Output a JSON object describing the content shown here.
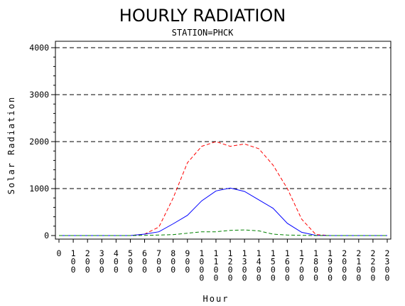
{
  "chart_data": {
    "type": "line",
    "title": "HOURLY RADIATION",
    "subtitle": "STATION=PHCK",
    "xlabel": "Hour",
    "ylabel": "Solar Radiation",
    "xlim": [
      0,
      2300
    ],
    "ylim": [
      0,
      4000
    ],
    "x_ticks": [
      "0",
      "100",
      "200",
      "300",
      "400",
      "500",
      "600",
      "700",
      "800",
      "900",
      "1000",
      "1100",
      "1200",
      "1300",
      "1400",
      "1500",
      "1600",
      "1700",
      "1800",
      "1900",
      "2000",
      "2100",
      "2200",
      "2300"
    ],
    "y_ticks": [
      0,
      1000,
      2000,
      3000,
      4000
    ],
    "grid": "horizontal dashed at major y ticks",
    "x": [
      0,
      100,
      200,
      300,
      400,
      500,
      600,
      700,
      800,
      900,
      1000,
      1100,
      1200,
      1300,
      1400,
      1500,
      1600,
      1700,
      1800,
      1900,
      2000,
      2100,
      2200,
      2300
    ],
    "series": [
      {
        "color": "#ff0000",
        "style": "dashed",
        "values": [
          0,
          0,
          0,
          0,
          0,
          0,
          30,
          180,
          800,
          1550,
          1900,
          2000,
          1900,
          1950,
          1850,
          1500,
          1000,
          350,
          20,
          0,
          0,
          0,
          0,
          0
        ]
      },
      {
        "color": "#0000ff",
        "style": "solid",
        "values": [
          0,
          0,
          0,
          0,
          0,
          0,
          30,
          80,
          250,
          430,
          740,
          950,
          1010,
          940,
          760,
          580,
          260,
          70,
          5,
          0,
          0,
          0,
          0,
          0
        ]
      },
      {
        "color": "#008000",
        "style": "dashed",
        "values": [
          0,
          0,
          0,
          0,
          0,
          0,
          5,
          10,
          20,
          50,
          80,
          80,
          110,
          120,
          100,
          30,
          10,
          5,
          0,
          0,
          0,
          0,
          0,
          0
        ]
      }
    ]
  }
}
